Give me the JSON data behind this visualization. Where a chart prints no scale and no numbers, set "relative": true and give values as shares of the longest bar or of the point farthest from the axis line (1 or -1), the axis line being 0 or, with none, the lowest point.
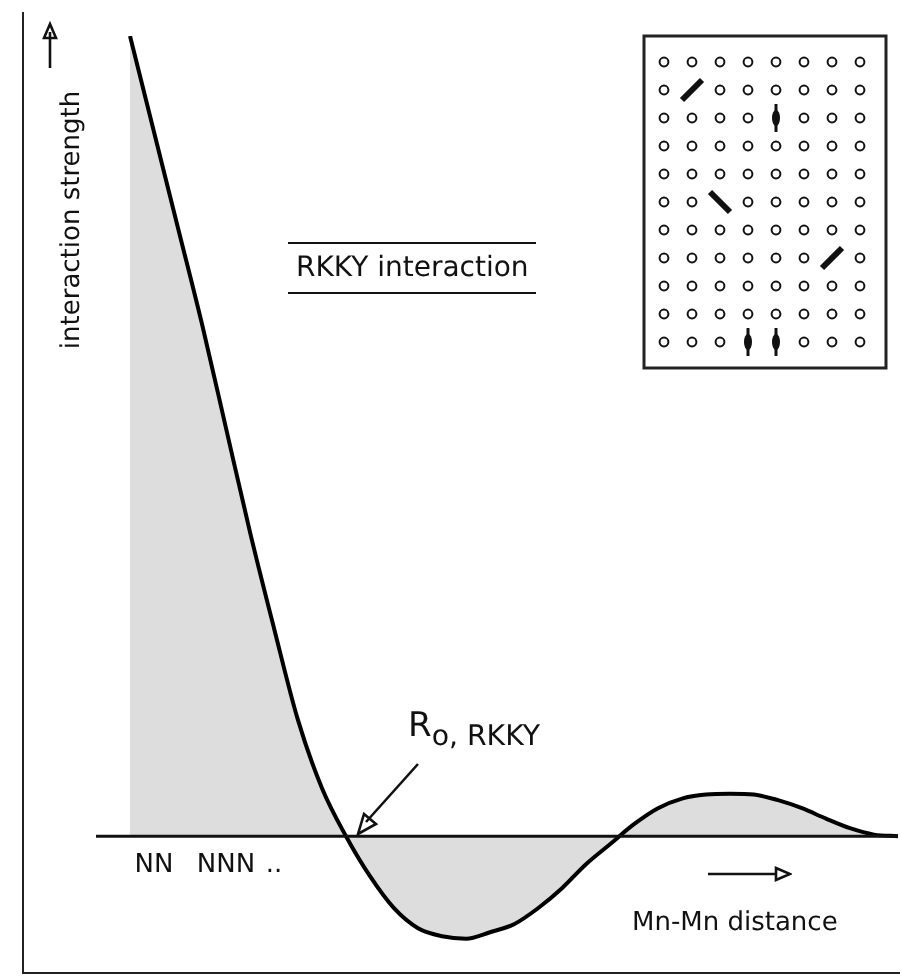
{
  "chart_data": {
    "type": "area",
    "title": "RKKY interaction",
    "xlabel": "Mn-Mn distance",
    "ylabel": "interaction strength",
    "relative": true,
    "categories": [
      null,
      null,
      "NN",
      null,
      null,
      "NNN",
      null,
      "..",
      null,
      null,
      null,
      null,
      null,
      null,
      null,
      null,
      null,
      null,
      null,
      null,
      null,
      null,
      null,
      null,
      null,
      null,
      null,
      null,
      null,
      null,
      null,
      null,
      null,
      null
    ],
    "series": [
      {
        "color": "#000000",
        "values": [
          null,
          1.0,
          0.88,
          0.76,
          0.64,
          0.51,
          0.38,
          0.26,
          0.145,
          0.06,
          0,
          -0.05,
          -0.09,
          -0.115,
          -0.125,
          -0.128,
          -0.12,
          -0.11,
          -0.09,
          -0.065,
          -0.035,
          -0.01,
          0.015,
          0.035,
          0.047,
          0.052,
          0.053,
          0.052,
          0.045,
          0.035,
          0.022,
          0.01,
          0.002,
          0
        ]
      }
    ],
    "annotations": [
      "R$_{o, RKKY}$"
    ],
    "marker": "none"
  }
}
